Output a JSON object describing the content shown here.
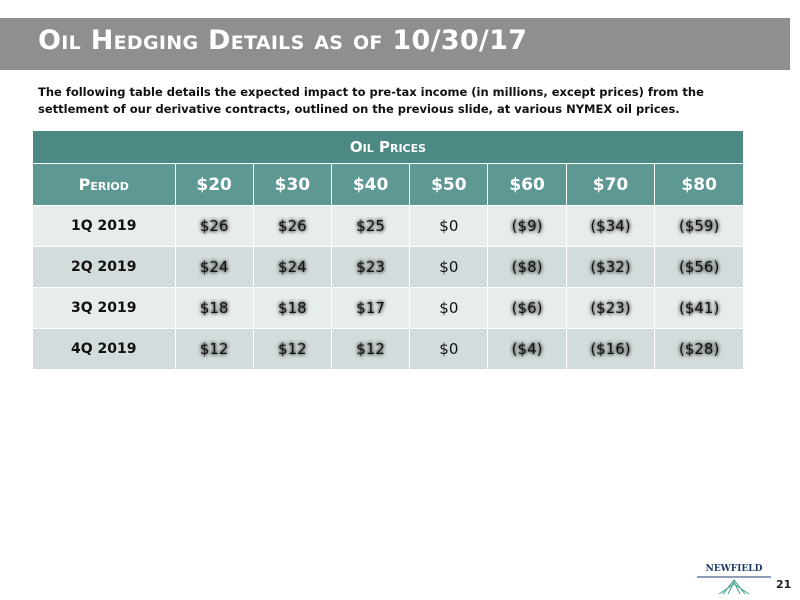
{
  "header": {
    "title": "Oil Hedging Details as of 10/30/17"
  },
  "intro": "The following table details the expected impact to pre-tax income (in millions, except prices) from the settlement of our derivative contracts, outlined on the previous slide, at various NYMEX oil prices.",
  "table": {
    "group_header": "Oil Prices",
    "columns": [
      "Period",
      "$20",
      "$30",
      "$40",
      "$50",
      "$60",
      "$70",
      "$80"
    ],
    "rows": [
      [
        "1Q 2019",
        "$26",
        "$26",
        "$25",
        "$0",
        "($9)",
        "($34)",
        "($59)"
      ],
      [
        "2Q 2019",
        "$24",
        "$24",
        "$23",
        "$0",
        "($8)",
        "($32)",
        "($56)"
      ],
      [
        "3Q 2019",
        "$18",
        "$18",
        "$17",
        "$0",
        "($6)",
        "($23)",
        "($41)"
      ],
      [
        "4Q 2019",
        "$12",
        "$12",
        "$12",
        "$0",
        "($4)",
        "($16)",
        "($28)"
      ]
    ]
  },
  "footer": {
    "logo": "NEWFIELD",
    "page_number": "21"
  }
}
